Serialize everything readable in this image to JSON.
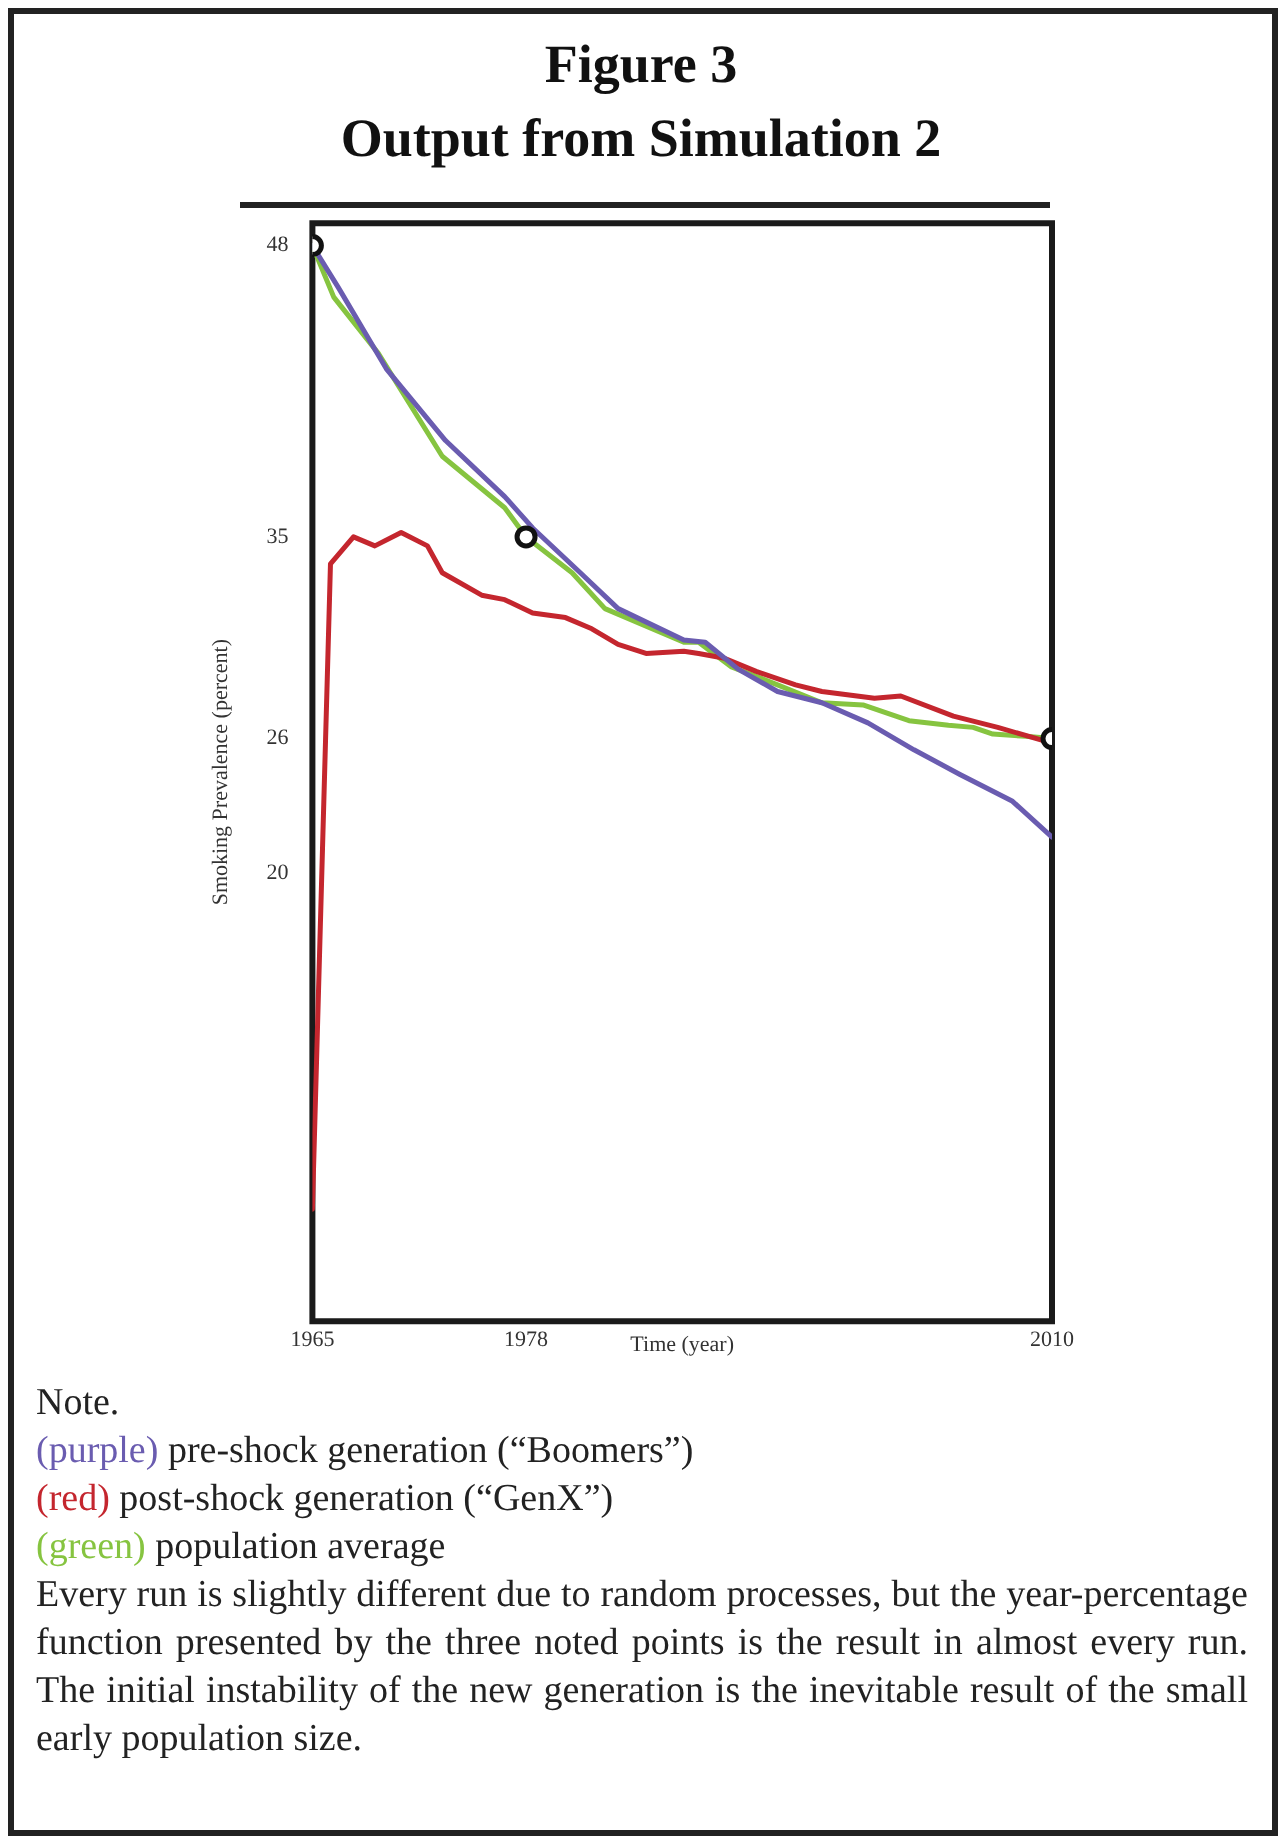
{
  "chart_data": {
    "type": "line",
    "title": "Figure 3\nOutput from Simulation 2",
    "xlabel": "Time (year)",
    "ylabel": "Smoking Prevalence (percent)",
    "xlim": [
      1965,
      2010
    ],
    "xticks": [
      1965,
      1978,
      2010
    ],
    "ylim": [
      0,
      49
    ],
    "yticks": [
      48,
      35,
      26,
      20
    ],
    "grid": false,
    "legend": false,
    "marker": "none",
    "line_style": "solid",
    "series": [
      {
        "name": "(purple) pre-shock generation (“Boomers”)",
        "color": "#6a5cb0",
        "x": [
          1965,
          1966.6,
          1969.5,
          1973.1,
          1976.7,
          1978.4,
          1981.3,
          1983.6,
          1987.6,
          1988.9,
          1990.9,
          1993.3,
          1996,
          1998.8,
          2001.6,
          2004.4,
          2007.6,
          2010
        ],
        "values": [
          48,
          46.1,
          42.5,
          39.3,
          36.8,
          35.4,
          33.4,
          31.8,
          30.4,
          30.3,
          29.1,
          28.1,
          27.6,
          26.7,
          25.5,
          24.4,
          23.2,
          21.6
        ]
      },
      {
        "name": "(red) post-shock generation (“GenX”)",
        "color": "#c4262e",
        "x": [
          1965,
          1966.1,
          1967.5,
          1968.8,
          1970.4,
          1972,
          1972.9,
          1975.3,
          1976.7,
          1978.4,
          1980.4,
          1982,
          1983.6,
          1985.3,
          1987.6,
          1988.5,
          1990,
          1992,
          1994.4,
          1996,
          1999.2,
          2000.8,
          2004,
          2006.7,
          2010
        ],
        "values": [
          5,
          33.8,
          35,
          34.6,
          35.2,
          34.6,
          33.4,
          32.4,
          32.2,
          31.6,
          31.4,
          30.9,
          30.2,
          29.8,
          29.9,
          29.8,
          29.6,
          29,
          28.4,
          28.1,
          27.8,
          27.9,
          27,
          26.5,
          25.8
        ]
      },
      {
        "name": "(green) population average",
        "color": "#86c440",
        "x": [
          1965,
          1966.3,
          1969,
          1972.9,
          1976.7,
          1978,
          1980.8,
          1982.8,
          1987.6,
          1988.5,
          1990.5,
          1993.3,
          1996,
          1998.5,
          2001.3,
          2003.7,
          2005.2,
          2006.4,
          2008.4,
          2010
        ],
        "values": [
          48,
          45.7,
          43.2,
          38.6,
          36.3,
          35,
          33.4,
          31.8,
          30.3,
          30.3,
          29.2,
          28.4,
          27.6,
          27.5,
          26.8,
          26.6,
          26.5,
          26.2,
          26.1,
          26
        ]
      },
      {
        "type": "scatter",
        "marker": "circle",
        "color": "#111111",
        "x": [
          1965,
          1978,
          2010
        ],
        "values": [
          48,
          35,
          26
        ]
      }
    ],
    "annotations": [
      "Note.",
      "Every run is slightly different due to random processes, but the year-percentage function presented by the three noted points is the result in almost every run. The initial instability of the new generation is the inevitable result of the small early population size."
    ]
  }
}
